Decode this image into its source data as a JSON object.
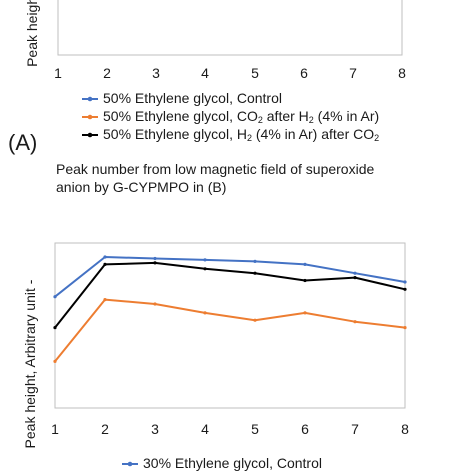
{
  "panel_label": "(A)",
  "caption": {
    "line1": "Peak number  from low magnetic field of superoxide",
    "line2": "anion by G-CYPMPO in (B)"
  },
  "chart_data": [
    {
      "type": "line",
      "ylabel": "Peak height, ",
      "xlabel": "",
      "x": [
        1,
        2,
        3,
        4,
        5,
        6,
        7,
        8
      ],
      "x_tick_labels": [
        "1",
        "2",
        "3",
        "4",
        "5",
        "6",
        "7",
        "8"
      ],
      "grid": false,
      "legend_position": "bottom",
      "legend": [
        {
          "text": "50% Ethylene glycol, Control",
          "color": "#4472c4"
        },
        {
          "text": "50% Ethylene glycol, CO₂ after H₂ (4% in Ar)",
          "color": "#ed7d31"
        },
        {
          "text": "50% Ethylene glycol, H₂ (4% in Ar)  after CO₂",
          "color": "#000000"
        }
      ],
      "series": [],
      "note": "plot area cropped at top; data lines not visible"
    },
    {
      "type": "line",
      "ylabel": "Peak height, Arbitrary unit -",
      "xlabel": "",
      "x": [
        1,
        2,
        3,
        4,
        5,
        6,
        7,
        8
      ],
      "x_tick_labels": [
        "1",
        "2",
        "3",
        "4",
        "5",
        "6",
        "7",
        "8"
      ],
      "grid": false,
      "legend_position": "bottom",
      "legend": [
        {
          "text": "30% Ethylene glycol, Control",
          "color": "#4472c4"
        }
      ],
      "series": [
        {
          "name": "30% Ethylene glycol, Control",
          "color": "#4472c4",
          "values": [
            0.73,
            1.0,
            0.99,
            0.98,
            0.97,
            0.95,
            0.89,
            0.83
          ]
        },
        {
          "color": "#ed7d31",
          "values": [
            0.29,
            0.71,
            0.68,
            0.62,
            0.57,
            0.62,
            0.56,
            0.52
          ]
        },
        {
          "color": "#000000",
          "values": [
            0.52,
            0.95,
            0.96,
            0.92,
            0.89,
            0.84,
            0.86,
            0.78
          ]
        }
      ]
    }
  ]
}
